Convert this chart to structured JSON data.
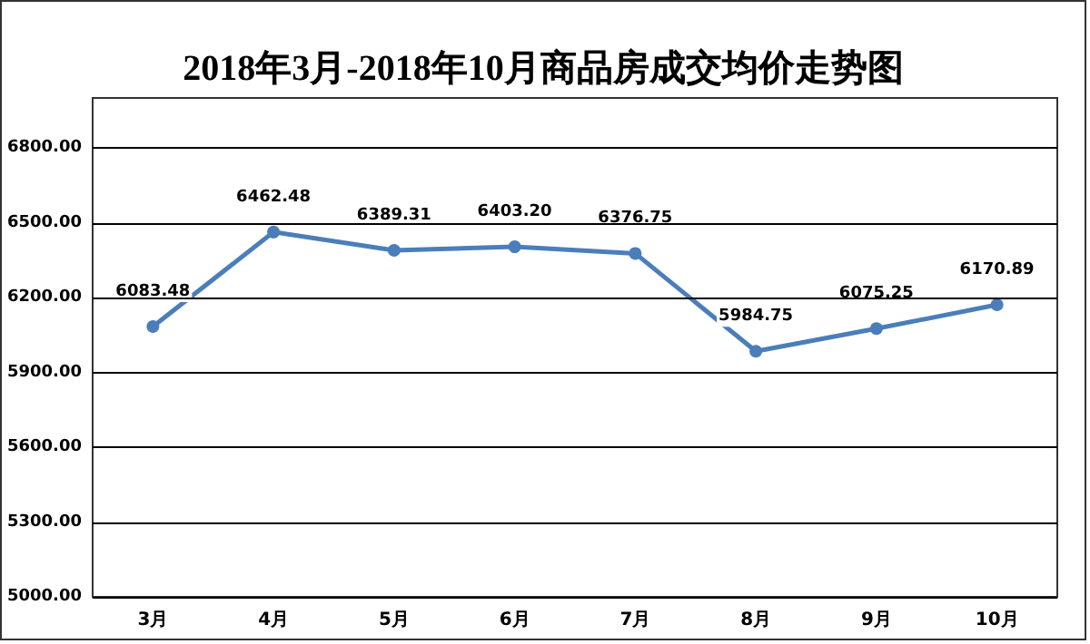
{
  "chart_data": {
    "type": "line",
    "title": "2018年3月-2018年10月商品房成交均价走势图",
    "categories": [
      "3月",
      "4月",
      "5月",
      "6月",
      "7月",
      "8月",
      "9月",
      "10月"
    ],
    "series": [
      {
        "color": "#4a7ebb",
        "values": [
          6083.48,
          6462.48,
          6389.31,
          6403.2,
          6376.75,
          5984.75,
          6075.25,
          6170.89
        ],
        "value_labels": [
          "6083.48",
          "6462.48",
          "6389.31",
          "6403.20",
          "6376.75",
          "5984.75",
          "6075.25",
          "6170.89"
        ]
      }
    ],
    "ylim": [
      5000,
      7000
    ],
    "yticks": [
      {
        "value": 5000,
        "label": "5000.00"
      },
      {
        "value": 5300,
        "label": "5300.00"
      },
      {
        "value": 5600,
        "label": "5600.00"
      },
      {
        "value": 5900,
        "label": "5900.00"
      },
      {
        "value": 6200,
        "label": "6200.00"
      },
      {
        "value": 6500,
        "label": "6500.00"
      },
      {
        "value": 6800,
        "label": "6800.00"
      }
    ],
    "grid": "y",
    "marker": "circle",
    "line_style": "solid"
  }
}
